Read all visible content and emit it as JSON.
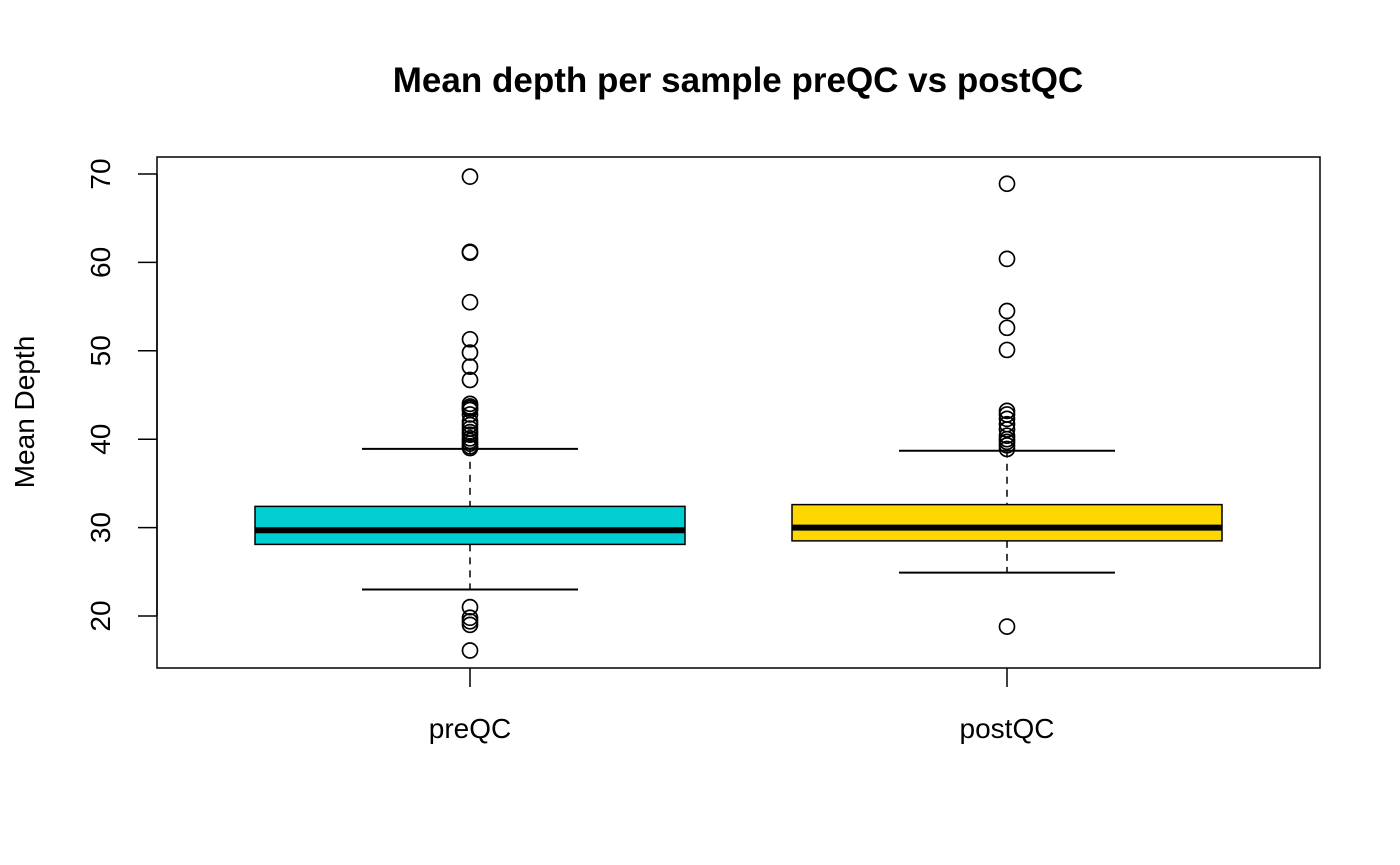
{
  "chart_data": {
    "type": "box",
    "title": "Mean depth per sample preQC vs postQC",
    "xlabel": "",
    "ylabel": "Mean Depth",
    "ylim": [
      14,
      71
    ],
    "yticks": [
      20,
      30,
      40,
      50,
      60,
      70
    ],
    "grid": false,
    "legend": "none",
    "series": [
      {
        "category": "preQC",
        "color": "#00CED1",
        "whisker_low": 23.0,
        "q1": 28.1,
        "median": 29.7,
        "q3": 32.4,
        "whisker_high": 38.9,
        "outliers": [
          69.7,
          61.2,
          61.1,
          55.5,
          51.3,
          49.8,
          48.2,
          46.7,
          44.0,
          43.7,
          43.5,
          43.3,
          42.8,
          42.0,
          41.6,
          41.2,
          40.8,
          40.5,
          40.1,
          39.8,
          39.5,
          39.2,
          39.0,
          21.0,
          19.8,
          19.4,
          19.0,
          16.1
        ]
      },
      {
        "category": "postQC",
        "color": "#FFD700",
        "whisker_low": 24.9,
        "q1": 28.5,
        "median": 30.0,
        "q3": 32.6,
        "whisker_high": 38.7,
        "outliers": [
          68.9,
          60.4,
          54.5,
          52.6,
          50.1,
          43.2,
          42.8,
          42.3,
          41.7,
          41.1,
          40.4,
          40.0,
          39.7,
          39.3,
          38.9,
          18.8
        ]
      }
    ]
  }
}
